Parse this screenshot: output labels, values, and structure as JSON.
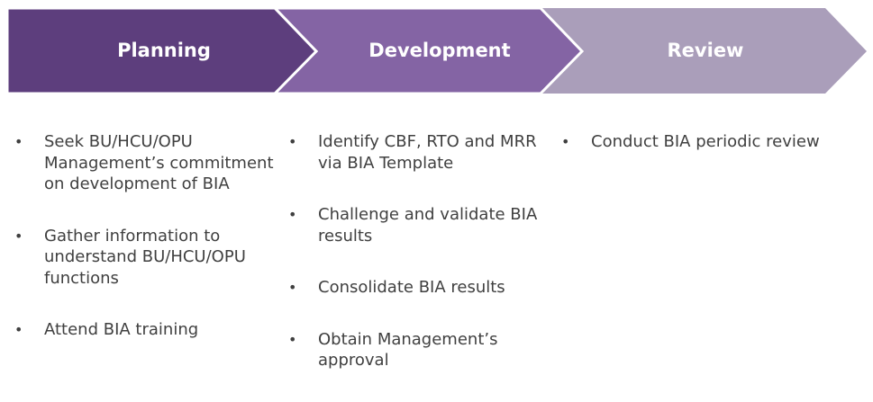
{
  "colors": {
    "planning": "#5d3e7d",
    "development": "#8464a4",
    "review": "#aa9eba",
    "text": "#404040",
    "separator": "#ffffff"
  },
  "phases": [
    {
      "title": "Planning",
      "tasks": [
        "Seek BU/HCU/OPU Management’s commitment on development of BIA",
        "Gather information to understand BU/HCU/OPU functions",
        "Attend BIA training"
      ]
    },
    {
      "title": "Development",
      "tasks": [
        "Identify CBF, RTO and MRR via BIA Template",
        "Challenge and validate BIA results",
        "Consolidate BIA results",
        "Obtain Management’s approval"
      ]
    },
    {
      "title": "Review",
      "tasks": [
        "Conduct BIA periodic review"
      ]
    }
  ]
}
